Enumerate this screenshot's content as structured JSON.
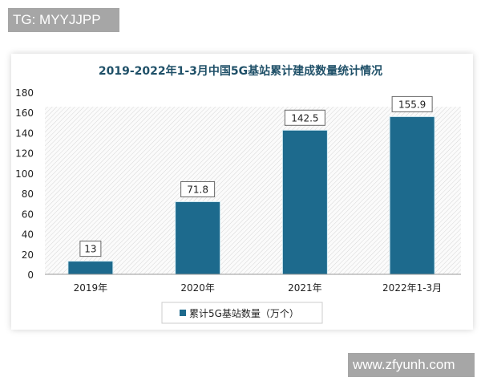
{
  "watermarks": {
    "top": "TG: MYYJJPP",
    "bottom": "www.zfyunh.com"
  },
  "colors": {
    "bar": "#1d6a8d",
    "title": "#1f5068",
    "watermark": "#a6a6a6"
  },
  "chart_data": {
    "type": "bar",
    "title": "2019-2022年1-3月中国5G基站累计建成数量统计情况",
    "categories": [
      "2019年",
      "2020年",
      "2021年",
      "2022年1-3月"
    ],
    "series": [
      {
        "name": "累计5G基站数量（万个）",
        "values": [
          13,
          71.8,
          142.5,
          155.9
        ]
      }
    ],
    "data_labels": [
      "13",
      "71.8",
      "142.5",
      "155.9"
    ],
    "ylim": [
      0,
      180
    ],
    "yticks": [
      0,
      20,
      40,
      60,
      80,
      100,
      120,
      140,
      160,
      180
    ],
    "xlabel": "",
    "ylabel": "",
    "grid": false,
    "legend_position": "bottom"
  }
}
